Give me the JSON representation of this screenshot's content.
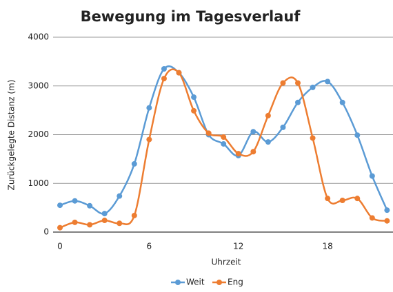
{
  "chart_data": {
    "type": "line",
    "title": "Bewegung im Tagesverlauf",
    "x_label": "Uhrzeit",
    "y_label": "Zurückgelegte Distanz (m)",
    "x": [
      0,
      1,
      2,
      3,
      4,
      5,
      6,
      7,
      8,
      9,
      10,
      11,
      12,
      13,
      14,
      15,
      16,
      17,
      18,
      19,
      20,
      21,
      22
    ],
    "series": [
      {
        "name": "Weit",
        "color": "#5b9bd5",
        "values": [
          550,
          640,
          540,
          380,
          740,
          1400,
          2550,
          3350,
          3270,
          2770,
          2000,
          1810,
          1570,
          2060,
          1850,
          2150,
          2660,
          2970,
          3090,
          2660,
          1990,
          1150,
          450
        ]
      },
      {
        "name": "Eng",
        "color": "#ed7d31",
        "values": [
          90,
          200,
          150,
          240,
          180,
          340,
          1900,
          3150,
          3270,
          2490,
          2030,
          1950,
          1610,
          1650,
          2390,
          3060,
          3060,
          1930,
          690,
          650,
          690,
          290,
          230
        ]
      }
    ],
    "xlim": [
      0,
      22.4
    ],
    "xticks": [
      0,
      6,
      12,
      18
    ],
    "ylim": [
      0,
      4000
    ],
    "yticks": [
      0,
      1000,
      2000,
      3000,
      4000
    ],
    "grid": true,
    "smooth": true,
    "legend": "bottom"
  }
}
